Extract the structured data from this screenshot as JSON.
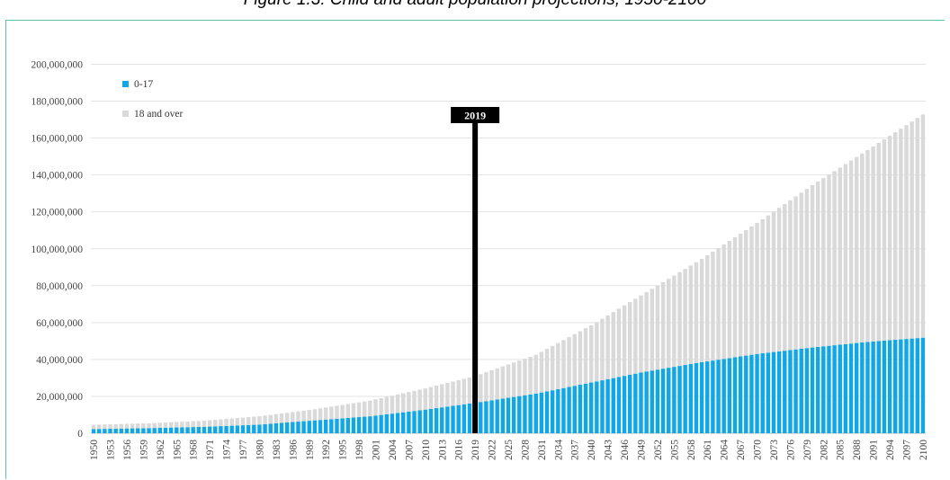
{
  "chart_data": {
    "type": "bar",
    "stacked": true,
    "title": "Figure 1.3: Child and adult population projections, 1950-2100",
    "xlabel": "",
    "ylabel": "",
    "x_start": 1950,
    "x_end": 2100,
    "x_label_step": 3,
    "ylim": [
      0,
      200000000
    ],
    "y_ticks": [
      0,
      20000000,
      40000000,
      60000000,
      80000000,
      100000000,
      120000000,
      140000000,
      160000000,
      180000000,
      200000000
    ],
    "y_tick_labels": [
      "0",
      "20,000,000",
      "40,000,000",
      "60,000,000",
      "80,000,000",
      "100,000,000",
      "120,000,000",
      "140,000,000",
      "160,000,000",
      "180,000,000",
      "200,000,000"
    ],
    "grid": true,
    "legend": "top-left",
    "marker": {
      "x": 2019,
      "label": "2019"
    },
    "series": [
      {
        "name": "0-17",
        "color": "#0fa7e6",
        "anchors": [
          [
            1950,
            2300000
          ],
          [
            1960,
            2800000
          ],
          [
            1970,
            3500000
          ],
          [
            1980,
            4700000
          ],
          [
            1990,
            7000000
          ],
          [
            2000,
            9200000
          ],
          [
            2010,
            12800000
          ],
          [
            2019,
            16500000
          ],
          [
            2030,
            21500000
          ],
          [
            2040,
            27500000
          ],
          [
            2050,
            33500000
          ],
          [
            2060,
            38500000
          ],
          [
            2070,
            43000000
          ],
          [
            2080,
            46500000
          ],
          [
            2090,
            49500000
          ],
          [
            2100,
            51800000
          ]
        ]
      },
      {
        "name": "18 and over",
        "color": "#d9d9d9",
        "anchors": [
          [
            1950,
            2300000
          ],
          [
            1960,
            2600000
          ],
          [
            1970,
            3300000
          ],
          [
            1980,
            4500000
          ],
          [
            1990,
            6000000
          ],
          [
            2000,
            8500000
          ],
          [
            2010,
            11500000
          ],
          [
            2019,
            14500000
          ],
          [
            2030,
            21000000
          ],
          [
            2040,
            31000000
          ],
          [
            2050,
            43000000
          ],
          [
            2060,
            56000000
          ],
          [
            2070,
            71000000
          ],
          [
            2080,
            88000000
          ],
          [
            2090,
            104000000
          ],
          [
            2100,
            121000000
          ]
        ]
      }
    ]
  }
}
